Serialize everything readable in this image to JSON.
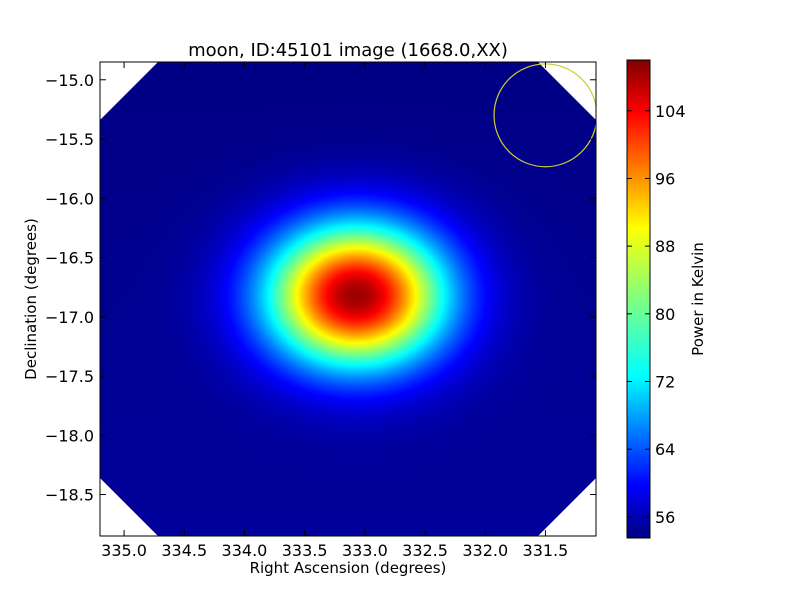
{
  "chart_data": {
    "type": "heatmap",
    "title": "moon, ID:45101 image (1668.0,XX)",
    "xlabel": "Right Ascension (degrees)",
    "ylabel": "Declination (degrees)",
    "colorbar_label": "Power in Kelvin",
    "colormap": "jet",
    "xlim": [
      335.2,
      331.08
    ],
    "ylim": [
      -18.85,
      -14.85
    ],
    "x_ticks": [
      335.0,
      334.5,
      334.0,
      333.5,
      333.0,
      332.5,
      332.0,
      331.5
    ],
    "x_tick_labels": [
      "335.0",
      "334.5",
      "334.0",
      "333.5",
      "333.0",
      "332.5",
      "332.0",
      "331.5"
    ],
    "y_ticks": [
      -15.0,
      -15.5,
      -16.0,
      -16.5,
      -17.0,
      -17.5,
      -18.0,
      -18.5
    ],
    "y_tick_labels": [
      "−15.0",
      "−15.5",
      "−16.0",
      "−16.5",
      "−17.0",
      "−17.5",
      "−18.0",
      "−18.5"
    ],
    "colorbar_range": [
      53.5,
      110
    ],
    "colorbar_ticks": [
      56,
      64,
      72,
      80,
      88,
      96,
      104
    ],
    "colorbar_tick_labels": [
      "56",
      "64",
      "72",
      "80",
      "88",
      "96",
      "104"
    ],
    "source": {
      "ra": 333.07,
      "dec": -16.82,
      "peak": 109,
      "background": 55,
      "sigma_ra": 0.52,
      "sigma_dec": 0.42
    },
    "beam_circle": {
      "ra": 331.5,
      "dec": -15.3,
      "radius_ra_deg": 0.35,
      "color": "#cccc33"
    },
    "blank_color": "#ffffff"
  }
}
